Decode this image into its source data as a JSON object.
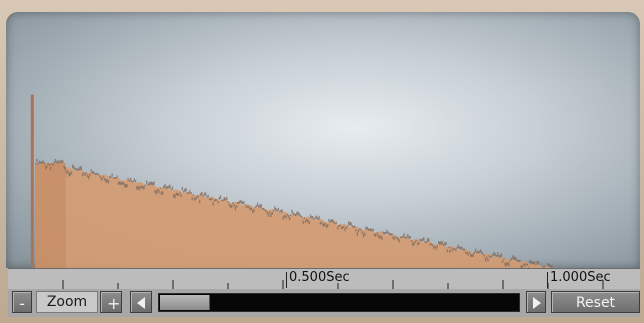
{
  "timeline": {
    "mid_label": "0.500Sec",
    "end_label": "1.000Sec"
  },
  "controls": {
    "zoom_out_label": "-",
    "zoom_label": "Zoom",
    "zoom_in_label": "+",
    "reset_label": "Reset",
    "scroll_position": 0.14
  },
  "chart_data": {
    "type": "area",
    "xlim": [
      0,
      1.1
    ],
    "ylim": [
      0,
      1
    ],
    "peak_x": 0.015,
    "peak_y": 0.76,
    "plateau_start": 0.02,
    "plateau_end": 0.075,
    "plateau_y": 0.46,
    "decay_start_y": 0.44,
    "decay_end_x": 0.95,
    "decay_end_y": 0.0
  },
  "colors": {
    "area_fill": "#d29b72",
    "area_edge": "#7c6a5e",
    "scroll_thumb": "#9d9d9d"
  }
}
